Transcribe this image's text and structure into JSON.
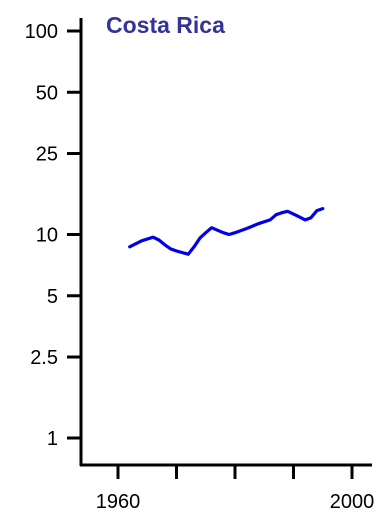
{
  "chart_data": {
    "type": "line",
    "title": "Costa Rica",
    "xlabel": "",
    "ylabel": "",
    "y_scale": "log",
    "xlim": [
      1952,
      2002
    ],
    "ylim": [
      0.8,
      100
    ],
    "grid": false,
    "x_ticks": [
      1960,
      1970,
      1980,
      1990,
      2000
    ],
    "x_tick_labels": [
      "1960",
      "",
      "",
      "",
      "2000"
    ],
    "y_ticks": [
      1,
      2.5,
      5,
      10,
      25,
      50,
      100
    ],
    "y_tick_labels": [
      "1",
      "2.5",
      "5",
      "10",
      "25",
      "50",
      "100"
    ],
    "series": [
      {
        "color": "#0000e6",
        "x": [
          1962,
          1964,
          1966,
          1967,
          1968,
          1969,
          1970,
          1972,
          1973,
          1974,
          1975,
          1976,
          1977,
          1978,
          1979,
          1980,
          1982,
          1984,
          1986,
          1987,
          1988,
          1989,
          1990,
          1991,
          1992,
          1993,
          1994,
          1995
        ],
        "y": [
          8.7,
          9.3,
          9.7,
          9.4,
          8.9,
          8.5,
          8.3,
          8.0,
          8.7,
          9.6,
          10.2,
          10.8,
          10.5,
          10.2,
          10.0,
          10.2,
          10.7,
          11.3,
          11.8,
          12.5,
          12.8,
          13.0,
          12.6,
          12.2,
          11.8,
          12.1,
          13.1,
          13.4
        ]
      }
    ]
  },
  "colors": {
    "title": "#333399",
    "axis": "#000000"
  }
}
